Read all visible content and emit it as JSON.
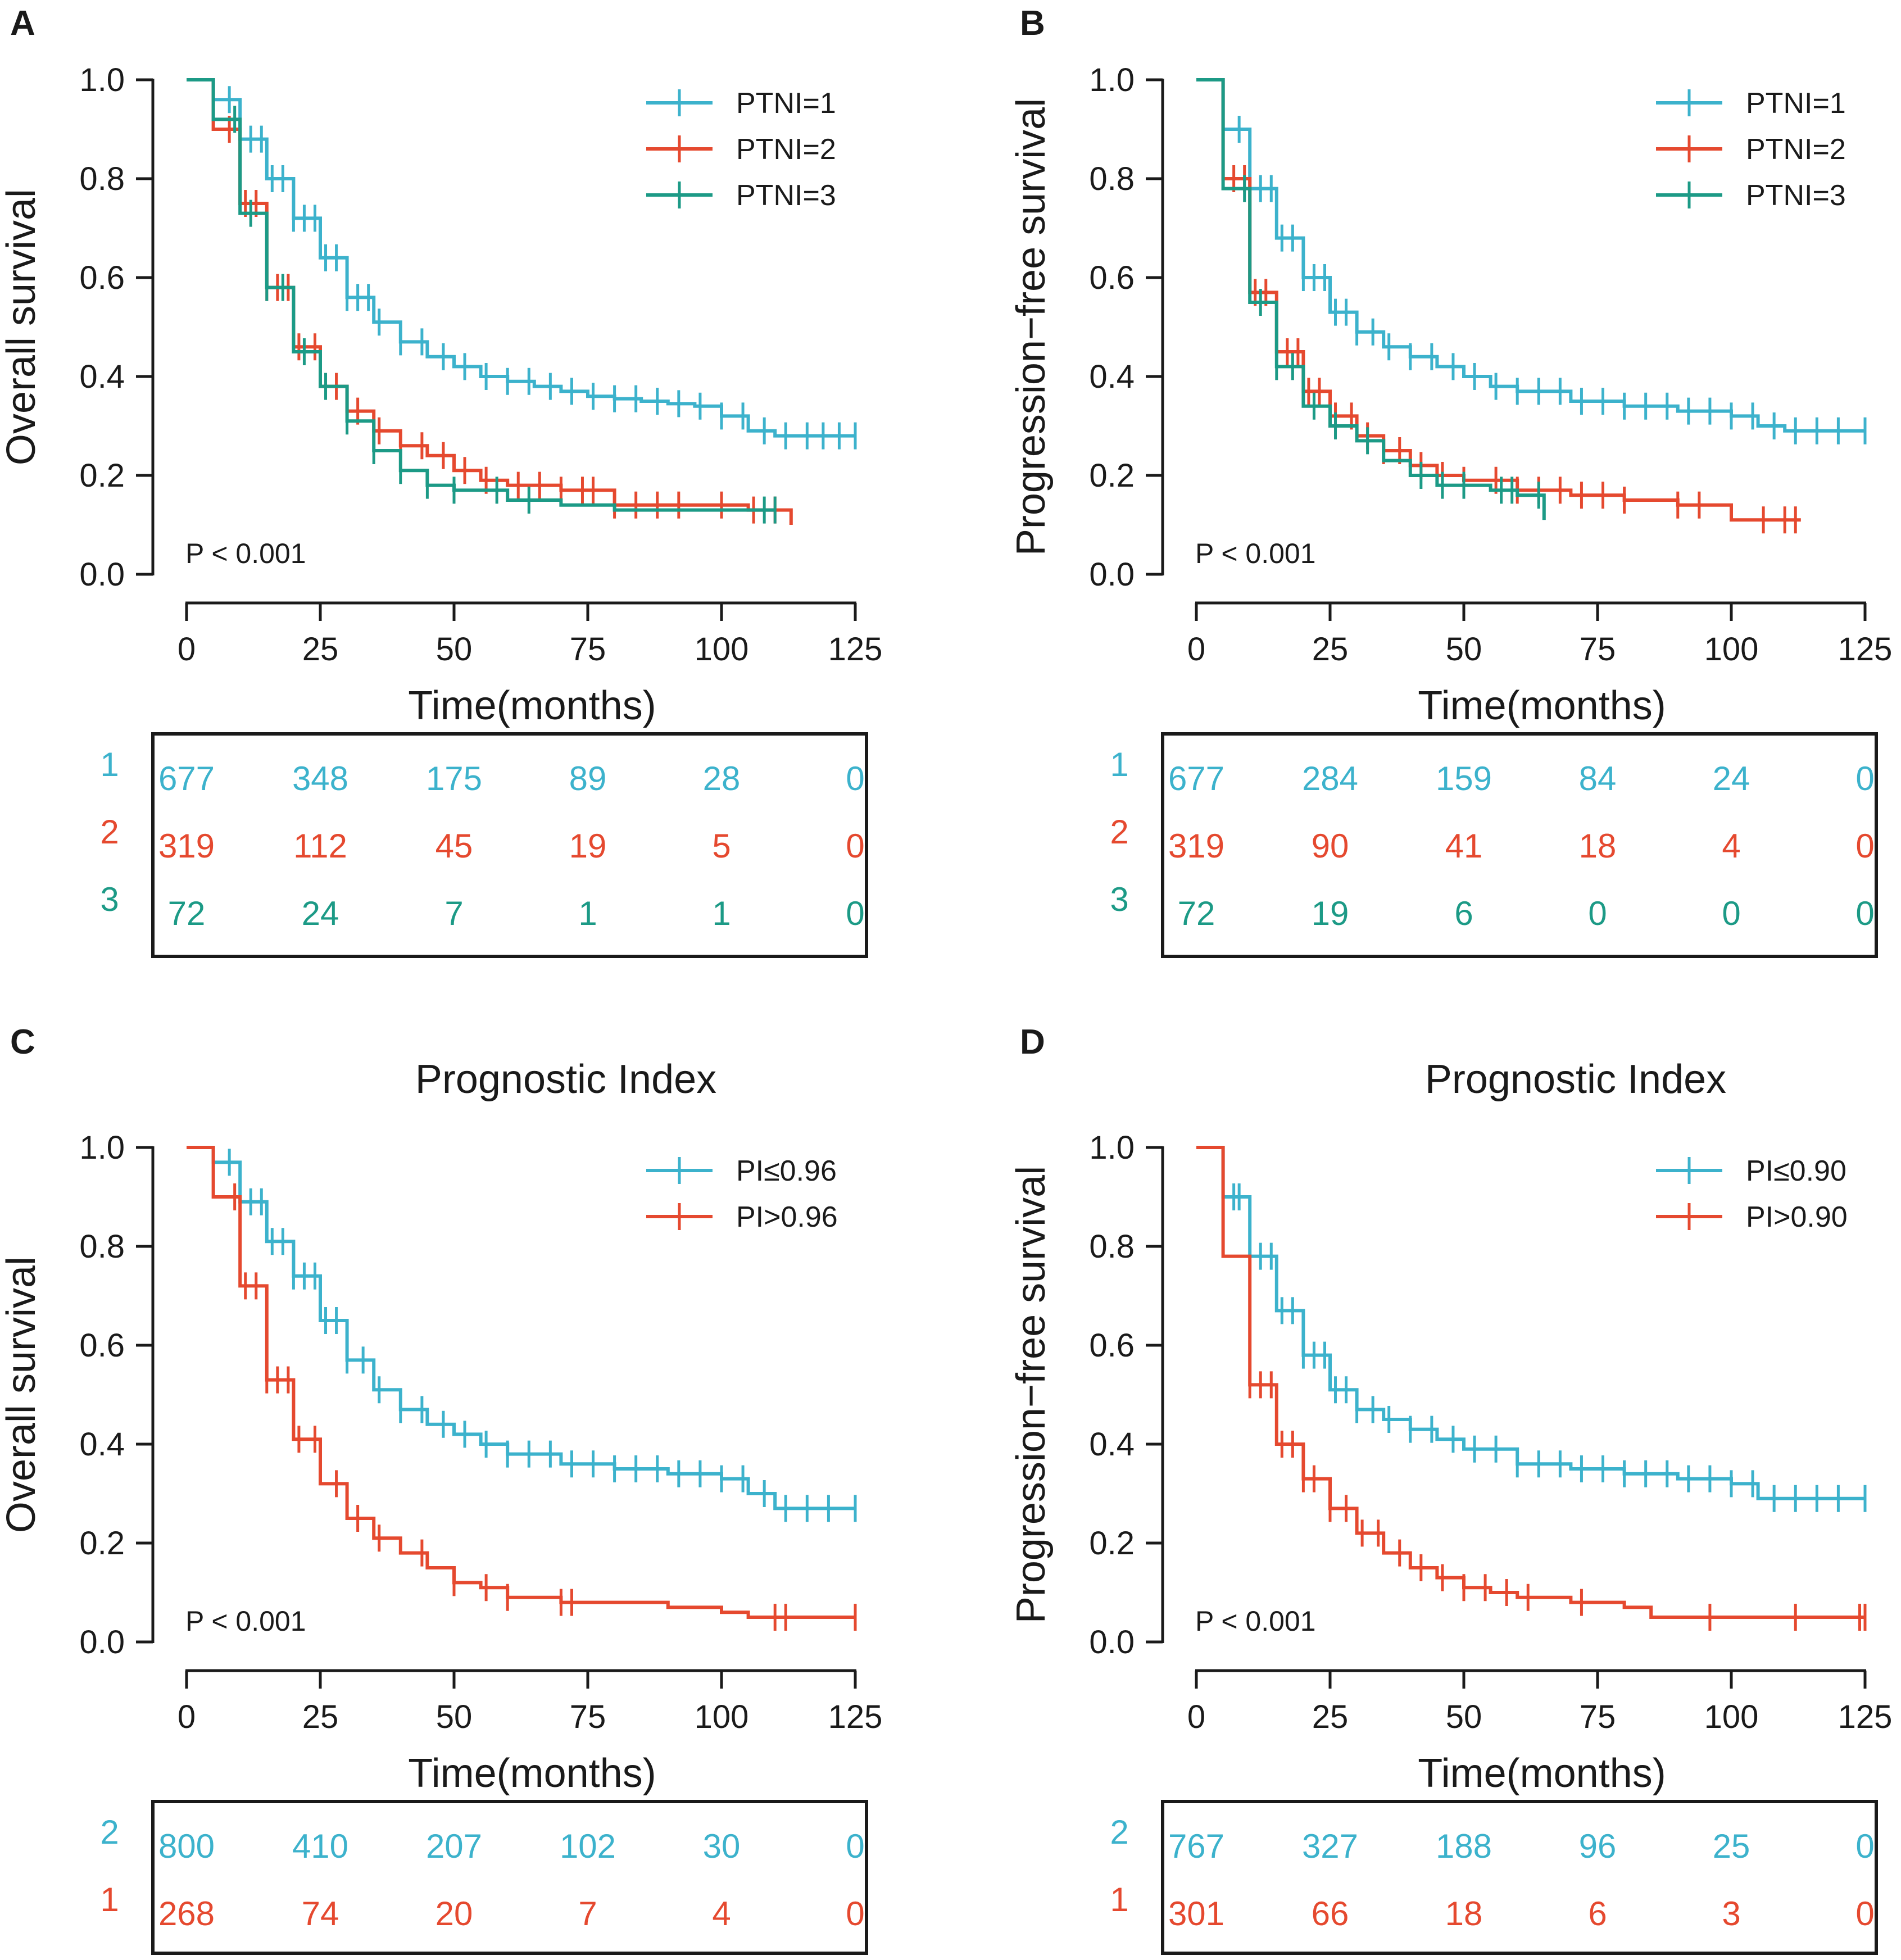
{
  "colors": {
    "group1": "#3cb2cc",
    "group2": "#e5492f",
    "group3": "#1c9a86",
    "axis": "#1a1a1a"
  },
  "chart_data": [
    {
      "panel": "A",
      "type": "line",
      "title": "",
      "xlabel": "Time(months)",
      "ylabel": "Overall survival",
      "xlim": [
        0,
        125
      ],
      "ylim": [
        0,
        1
      ],
      "xticks": [
        "0",
        "25",
        "50",
        "75",
        "100",
        "125"
      ],
      "yticks": [
        "0.0",
        "0.2",
        "0.4",
        "0.6",
        "0.8",
        "1.0"
      ],
      "p_value": "P < 0.001",
      "series": [
        {
          "name": "PTNI=1",
          "color": "#3cb2cc",
          "x": [
            0,
            5,
            10,
            15,
            20,
            25,
            30,
            35,
            40,
            45,
            50,
            55,
            60,
            65,
            70,
            75,
            80,
            85,
            90,
            95,
            100,
            105,
            110,
            125
          ],
          "y": [
            1.0,
            0.96,
            0.88,
            0.8,
            0.72,
            0.64,
            0.56,
            0.51,
            0.47,
            0.44,
            0.42,
            0.4,
            0.39,
            0.38,
            0.37,
            0.36,
            0.355,
            0.35,
            0.345,
            0.34,
            0.32,
            0.29,
            0.28,
            0.28
          ],
          "censor_x": [
            8,
            10,
            12,
            14,
            16,
            18,
            20,
            22,
            24,
            26,
            28,
            30,
            32,
            34,
            36,
            40,
            44,
            48,
            52,
            56,
            60,
            64,
            68,
            72,
            76,
            80,
            84,
            88,
            92,
            96,
            100,
            104,
            108,
            112,
            116,
            119,
            122,
            125
          ]
        },
        {
          "name": "PTNI=2",
          "color": "#e5492f",
          "x": [
            0,
            5,
            10,
            15,
            20,
            25,
            30,
            35,
            40,
            45,
            50,
            55,
            60,
            70,
            80,
            90,
            100,
            105,
            113
          ],
          "y": [
            1.0,
            0.9,
            0.75,
            0.58,
            0.46,
            0.38,
            0.33,
            0.29,
            0.26,
            0.24,
            0.21,
            0.19,
            0.18,
            0.17,
            0.14,
            0.14,
            0.14,
            0.13,
            0.1
          ],
          "censor_x": [
            8,
            11,
            13,
            15,
            17,
            19,
            21,
            24,
            28,
            32,
            36,
            40,
            44,
            48,
            52,
            56,
            62,
            66,
            70,
            74,
            76,
            80,
            84,
            88,
            92,
            100,
            106,
            110
          ]
        },
        {
          "name": "PTNI=3",
          "color": "#1c9a86",
          "x": [
            0,
            5,
            10,
            15,
            20,
            25,
            30,
            35,
            40,
            45,
            50,
            55,
            60,
            70,
            80,
            90,
            100,
            110
          ],
          "y": [
            1.0,
            0.92,
            0.73,
            0.58,
            0.45,
            0.38,
            0.31,
            0.25,
            0.21,
            0.18,
            0.17,
            0.17,
            0.15,
            0.14,
            0.13,
            0.13,
            0.13,
            0.13
          ],
          "censor_x": [
            9,
            12,
            15,
            18,
            22,
            26,
            30,
            35,
            40,
            45,
            50,
            58,
            64,
            108,
            110
          ]
        }
      ],
      "risk_table": {
        "strata": [
          "1",
          "2",
          "3"
        ],
        "rows": [
          [
            "677",
            "348",
            "175",
            "89",
            "28",
            "0"
          ],
          [
            "319",
            "112",
            "45",
            "19",
            "5",
            "0"
          ],
          [
            "72",
            "24",
            "7",
            "1",
            "1",
            "0"
          ]
        ]
      }
    },
    {
      "panel": "B",
      "type": "line",
      "title": "",
      "xlabel": "Time(months)",
      "ylabel": "Progression−free survival",
      "xlim": [
        0,
        125
      ],
      "ylim": [
        0,
        1
      ],
      "xticks": [
        "0",
        "25",
        "50",
        "75",
        "100",
        "125"
      ],
      "yticks": [
        "0.0",
        "0.2",
        "0.4",
        "0.6",
        "0.8",
        "1.0"
      ],
      "p_value": "P < 0.001",
      "series": [
        {
          "name": "PTNI=1",
          "color": "#3cb2cc",
          "x": [
            0,
            5,
            10,
            15,
            20,
            25,
            30,
            35,
            40,
            45,
            50,
            55,
            60,
            70,
            80,
            90,
            100,
            105,
            110,
            125
          ],
          "y": [
            1.0,
            0.9,
            0.78,
            0.68,
            0.6,
            0.53,
            0.49,
            0.46,
            0.44,
            0.42,
            0.4,
            0.38,
            0.37,
            0.35,
            0.34,
            0.33,
            0.32,
            0.3,
            0.29,
            0.29
          ],
          "censor_x": [
            8,
            10,
            12,
            14,
            16,
            18,
            20,
            22,
            24,
            26,
            28,
            30,
            33,
            36,
            40,
            44,
            48,
            52,
            56,
            60,
            64,
            68,
            72,
            76,
            80,
            84,
            88,
            92,
            96,
            100,
            104,
            108,
            112,
            116,
            120,
            125
          ]
        },
        {
          "name": "PTNI=2",
          "color": "#e5492f",
          "x": [
            0,
            5,
            10,
            15,
            20,
            25,
            30,
            35,
            40,
            45,
            50,
            60,
            70,
            80,
            90,
            100,
            113
          ],
          "y": [
            1.0,
            0.8,
            0.57,
            0.45,
            0.37,
            0.32,
            0.28,
            0.25,
            0.22,
            0.2,
            0.19,
            0.17,
            0.16,
            0.15,
            0.14,
            0.11,
            0.11
          ],
          "censor_x": [
            7,
            9,
            11,
            13,
            15,
            17,
            19,
            21,
            23,
            26,
            29,
            32,
            35,
            38,
            42,
            46,
            50,
            56,
            60,
            64,
            68,
            72,
            76,
            80,
            90,
            94,
            106,
            110,
            112
          ]
        },
        {
          "name": "PTNI=3",
          "color": "#1c9a86",
          "x": [
            0,
            5,
            10,
            15,
            20,
            25,
            30,
            35,
            40,
            45,
            50,
            55,
            60,
            65
          ],
          "y": [
            1.0,
            0.78,
            0.55,
            0.42,
            0.34,
            0.3,
            0.27,
            0.23,
            0.2,
            0.18,
            0.18,
            0.17,
            0.16,
            0.11
          ],
          "censor_x": [
            9,
            12,
            15,
            18,
            22,
            26,
            32,
            42,
            46,
            50,
            57,
            59,
            64
          ]
        }
      ],
      "risk_table": {
        "strata": [
          "1",
          "2",
          "3"
        ],
        "rows": [
          [
            "677",
            "284",
            "159",
            "84",
            "24",
            "0"
          ],
          [
            "319",
            "90",
            "41",
            "18",
            "4",
            "0"
          ],
          [
            "72",
            "19",
            "6",
            "0",
            "0",
            "0"
          ]
        ]
      }
    },
    {
      "panel": "C",
      "type": "line",
      "title": "Prognostic Index",
      "xlabel": "Time(months)",
      "ylabel": "Overall survival",
      "xlim": [
        0,
        125
      ],
      "ylim": [
        0,
        1
      ],
      "xticks": [
        "0",
        "25",
        "50",
        "75",
        "100",
        "125"
      ],
      "yticks": [
        "0.0",
        "0.2",
        "0.4",
        "0.6",
        "0.8",
        "1.0"
      ],
      "p_value": "P < 0.001",
      "series": [
        {
          "name": "PI≤0.96",
          "color": "#3cb2cc",
          "x": [
            0,
            5,
            10,
            15,
            20,
            25,
            30,
            35,
            40,
            45,
            50,
            55,
            60,
            70,
            80,
            90,
            100,
            105,
            110,
            125
          ],
          "y": [
            1.0,
            0.97,
            0.89,
            0.81,
            0.74,
            0.65,
            0.57,
            0.51,
            0.47,
            0.44,
            0.42,
            0.4,
            0.38,
            0.36,
            0.35,
            0.34,
            0.33,
            0.3,
            0.27,
            0.27
          ],
          "censor_x": [
            8,
            10,
            12,
            14,
            16,
            18,
            20,
            22,
            24,
            26,
            28,
            30,
            33,
            36,
            40,
            44,
            48,
            52,
            56,
            60,
            64,
            68,
            72,
            76,
            80,
            84,
            88,
            92,
            96,
            100,
            104,
            108,
            112,
            116,
            120,
            125
          ]
        },
        {
          "name": "PI>0.96",
          "color": "#e5492f",
          "x": [
            0,
            5,
            10,
            15,
            20,
            25,
            30,
            35,
            40,
            45,
            50,
            55,
            60,
            70,
            80,
            90,
            100,
            105,
            125
          ],
          "y": [
            1.0,
            0.9,
            0.72,
            0.53,
            0.41,
            0.32,
            0.25,
            0.21,
            0.18,
            0.15,
            0.12,
            0.11,
            0.09,
            0.08,
            0.08,
            0.07,
            0.06,
            0.05,
            0.05
          ],
          "censor_x": [
            9,
            11,
            13,
            15,
            17,
            19,
            21,
            24,
            28,
            32,
            36,
            44,
            50,
            56,
            60,
            70,
            72,
            110,
            112,
            125
          ]
        }
      ],
      "risk_table": {
        "strata": [
          "2",
          "1"
        ],
        "rows": [
          [
            "800",
            "410",
            "207",
            "102",
            "30",
            "0"
          ],
          [
            "268",
            "74",
            "20",
            "7",
            "4",
            "0"
          ]
        ]
      }
    },
    {
      "panel": "D",
      "type": "line",
      "title": "Prognostic Index",
      "xlabel": "Time(months)",
      "ylabel": "Progression−free survival",
      "xlim": [
        0,
        125
      ],
      "ylim": [
        0,
        1
      ],
      "xticks": [
        "0",
        "25",
        "50",
        "75",
        "100",
        "125"
      ],
      "yticks": [
        "0.0",
        "0.2",
        "0.4",
        "0.6",
        "0.8",
        "1.0"
      ],
      "p_value": "P < 0.001",
      "series": [
        {
          "name": "PI≤0.90",
          "color": "#3cb2cc",
          "x": [
            0,
            5,
            10,
            15,
            20,
            25,
            30,
            35,
            40,
            45,
            50,
            60,
            70,
            80,
            90,
            100,
            105,
            125
          ],
          "y": [
            1.0,
            0.9,
            0.78,
            0.67,
            0.58,
            0.51,
            0.47,
            0.45,
            0.43,
            0.41,
            0.39,
            0.36,
            0.35,
            0.34,
            0.33,
            0.32,
            0.29,
            0.29
          ],
          "censor_x": [
            7,
            8,
            10,
            12,
            14,
            16,
            18,
            20,
            22,
            24,
            26,
            28,
            30,
            33,
            36,
            40,
            44,
            48,
            52,
            56,
            60,
            64,
            68,
            72,
            76,
            80,
            84,
            88,
            92,
            96,
            100,
            104,
            108,
            112,
            116,
            120,
            125
          ]
        },
        {
          "name": "PI>0.90",
          "color": "#e5492f",
          "x": [
            0,
            5,
            10,
            15,
            20,
            25,
            30,
            35,
            40,
            45,
            50,
            55,
            60,
            70,
            80,
            85,
            90,
            100,
            110,
            125
          ],
          "y": [
            1.0,
            0.78,
            0.52,
            0.4,
            0.33,
            0.27,
            0.22,
            0.18,
            0.15,
            0.13,
            0.11,
            0.1,
            0.09,
            0.08,
            0.07,
            0.05,
            0.05,
            0.05,
            0.05,
            0.05
          ],
          "censor_x": [
            10,
            12,
            14,
            16,
            18,
            20,
            22,
            25,
            28,
            31,
            34,
            38,
            42,
            46,
            50,
            54,
            58,
            62,
            72,
            96,
            112,
            124,
            125
          ]
        }
      ],
      "risk_table": {
        "strata": [
          "2",
          "1"
        ],
        "rows": [
          [
            "767",
            "327",
            "188",
            "96",
            "25",
            "0"
          ],
          [
            "301",
            "66",
            "18",
            "6",
            "3",
            "0"
          ]
        ]
      }
    }
  ]
}
